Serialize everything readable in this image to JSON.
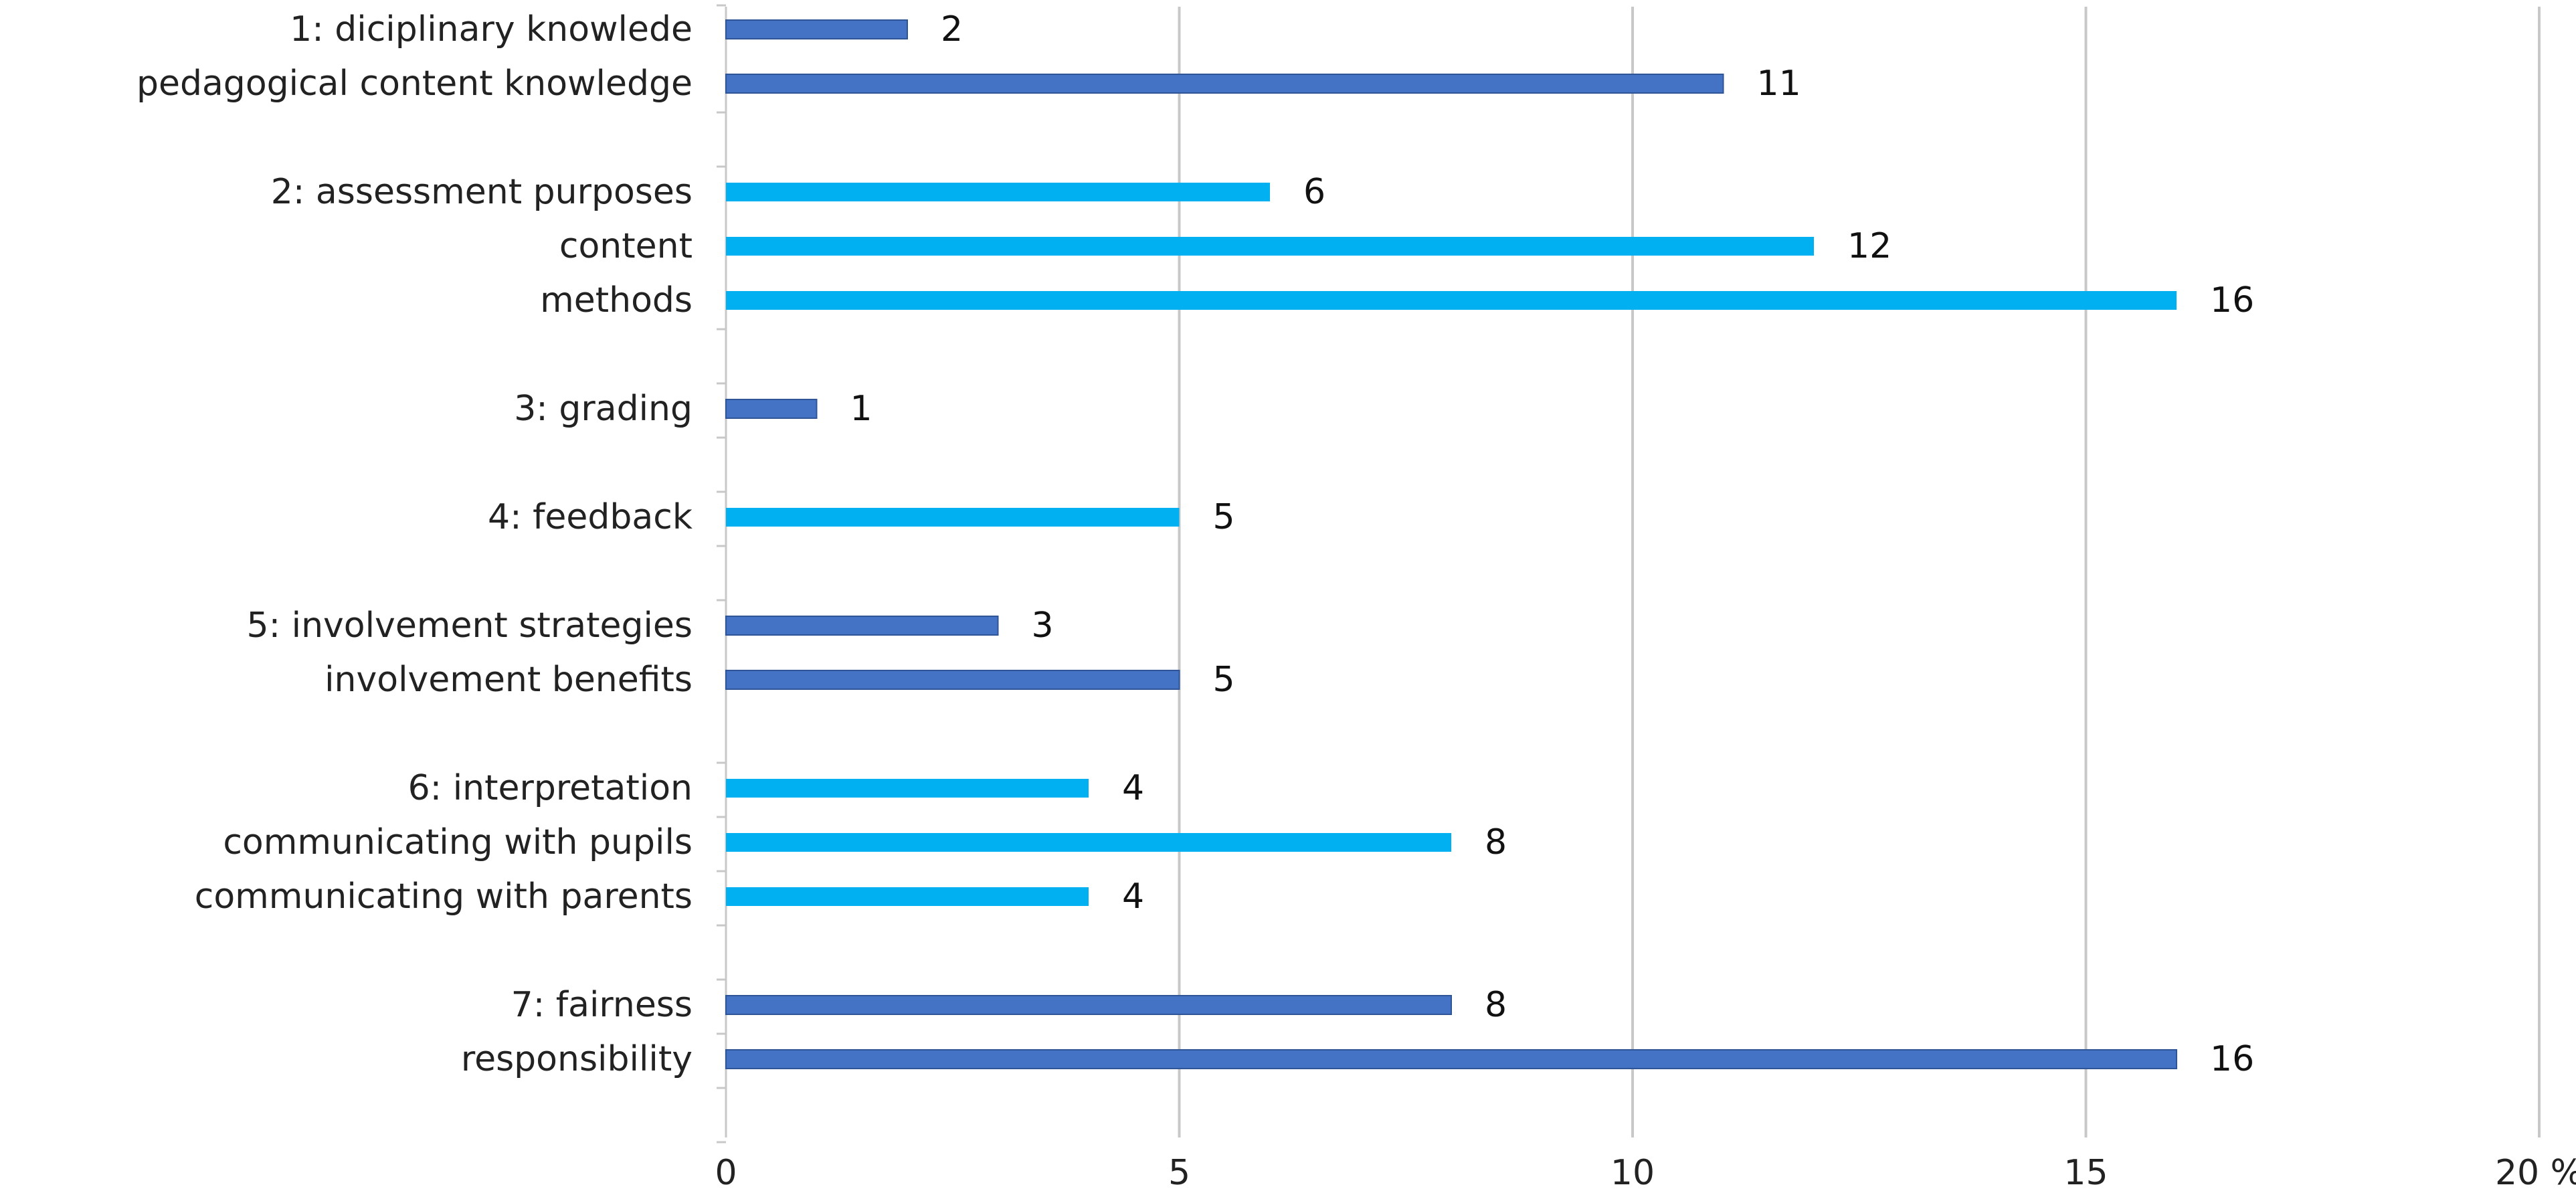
{
  "chart_data": {
    "type": "bar",
    "orientation": "horizontal",
    "xlabel": "",
    "ylabel": "",
    "xlim": [
      0,
      20
    ],
    "x_ticks": [
      0,
      5,
      10,
      15,
      20
    ],
    "x_unit": "%",
    "grid": true,
    "colors": {
      "dark_blue": "#4472C4",
      "light_blue": "#00B0F0"
    },
    "bars": [
      {
        "label": "1: diciplinary knowlede",
        "value": 2,
        "color": "#4472C4",
        "slot": 0
      },
      {
        "label": "pedagogical content knowledge",
        "value": 11,
        "color": "#4472C4",
        "slot": 1
      },
      {
        "label": "2: assessment purposes",
        "value": 6,
        "color": "#00B0F0",
        "slot": 3
      },
      {
        "label": "content",
        "value": 12,
        "color": "#00B0F0",
        "slot": 4
      },
      {
        "label": "methods",
        "value": 16,
        "color": "#00B0F0",
        "slot": 5
      },
      {
        "label": "3: grading",
        "value": 1,
        "color": "#4472C4",
        "slot": 7
      },
      {
        "label": "4: feedback",
        "value": 5,
        "color": "#00B0F0",
        "slot": 9
      },
      {
        "label": "5: involvement strategies",
        "value": 3,
        "color": "#4472C4",
        "slot": 11
      },
      {
        "label": "involvement benefits",
        "value": 5,
        "color": "#4472C4",
        "slot": 12
      },
      {
        "label": "6: interpretation",
        "value": 4,
        "color": "#00B0F0",
        "slot": 14
      },
      {
        "label": "communicating with pupils",
        "value": 8,
        "color": "#00B0F0",
        "slot": 15
      },
      {
        "label": "communicating with parents",
        "value": 4,
        "color": "#00B0F0",
        "slot": 16
      },
      {
        "label": "7: fairness",
        "value": 8,
        "color": "#4472C4",
        "slot": 18
      },
      {
        "label": "responsibility",
        "value": 16,
        "color": "#4472C4",
        "slot": 19
      }
    ]
  }
}
